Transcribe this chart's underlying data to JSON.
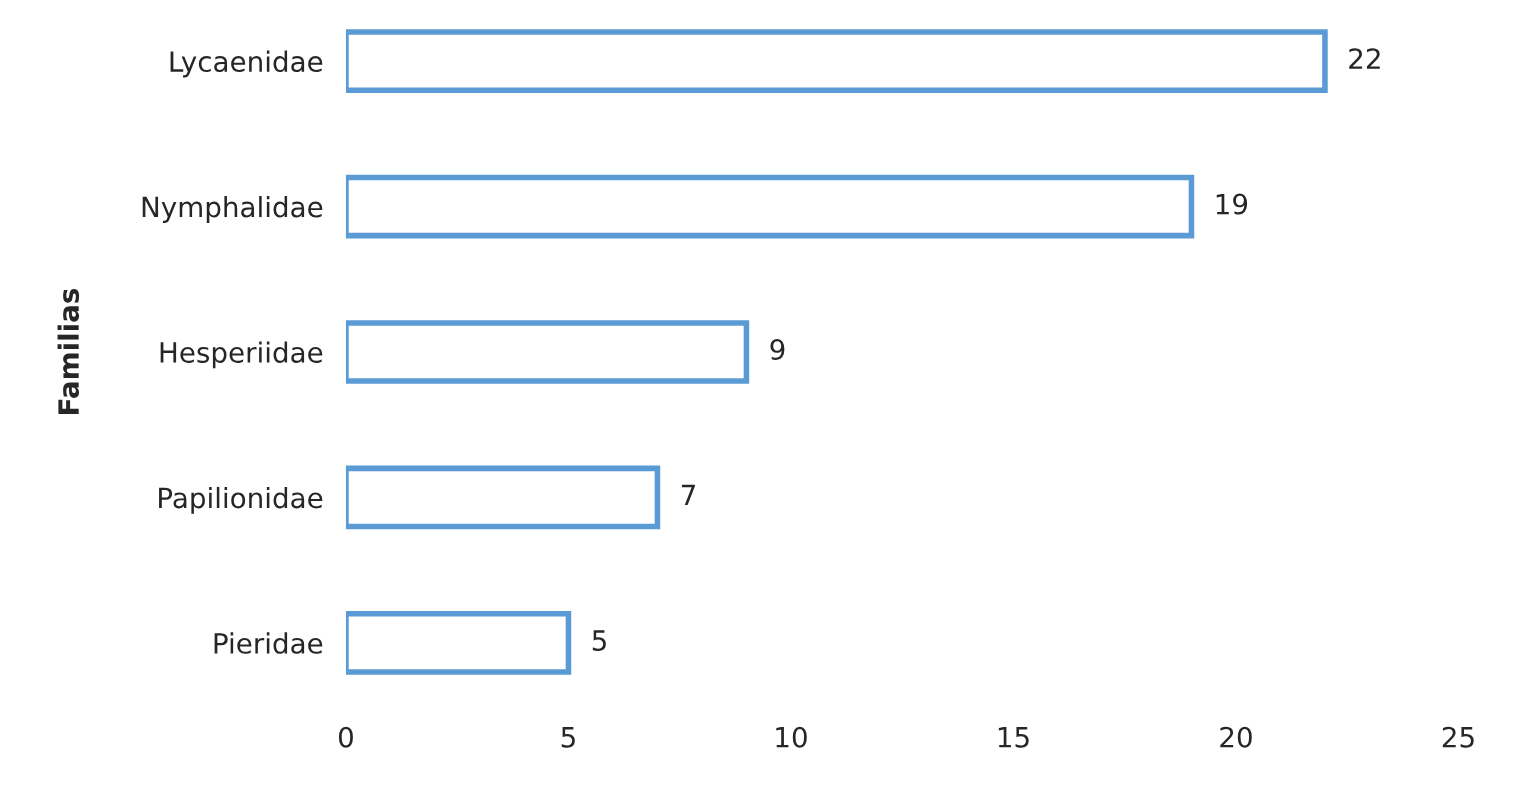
{
  "chart_data": {
    "type": "bar",
    "orientation": "horizontal",
    "ylabel": "Familias",
    "categories": [
      "Lycaenidae",
      "Nymphalidae",
      "Hesperiidae",
      "Papilionidae",
      "Pieridae"
    ],
    "values": [
      22,
      19,
      9,
      7,
      5
    ],
    "color": "#5b9bd5",
    "data_labels": true,
    "xlim": [
      0,
      25
    ],
    "xticks": [
      0,
      5,
      10,
      15,
      20,
      25
    ],
    "grid": false,
    "legend": false
  }
}
